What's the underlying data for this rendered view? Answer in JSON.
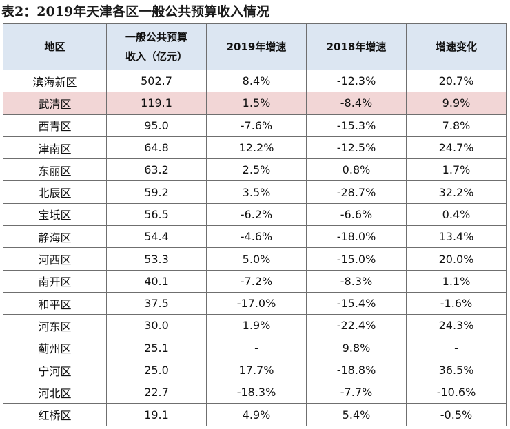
{
  "title": "表2：2019年天津各区一般公共预算收入情况",
  "headers": [
    "地区",
    "一般公共预算\n收入（亿元）",
    "2019年增速",
    "2018年增速",
    "增速变化"
  ],
  "highlight_color": "#f2d6d6",
  "header_color": "#dce6f2",
  "rows": [
    [
      "滨海新区",
      "502.7",
      "8.4%",
      "-12.3%",
      "20.7%"
    ],
    [
      "武清区",
      "119.1",
      "1.5%",
      "-8.4%",
      "9.9%"
    ],
    [
      "西青区",
      "95.0",
      "-7.6%",
      "-15.3%",
      "7.8%"
    ],
    [
      "津南区",
      "64.8",
      "12.2%",
      "-12.5%",
      "24.7%"
    ],
    [
      "东丽区",
      "63.2",
      "2.5%",
      "0.8%",
      "1.7%"
    ],
    [
      "北辰区",
      "59.2",
      "3.5%",
      "-28.7%",
      "32.2%"
    ],
    [
      "宝坻区",
      "56.5",
      "-6.2%",
      "-6.6%",
      "0.4%"
    ],
    [
      "静海区",
      "54.4",
      "-4.6%",
      "-18.0%",
      "13.4%"
    ],
    [
      "河西区",
      "53.3",
      "5.0%",
      "-15.0%",
      "20.0%"
    ],
    [
      "南开区",
      "40.1",
      "-7.2%",
      "-8.3%",
      "1.1%"
    ],
    [
      "和平区",
      "37.5",
      "-17.0%",
      "-15.4%",
      "-1.6%"
    ],
    [
      "河东区",
      "30.0",
      "1.9%",
      "-22.4%",
      "24.3%"
    ],
    [
      "蓟州区",
      "25.1",
      "-",
      "9.8%",
      "-"
    ],
    [
      "宁河区",
      "25.0",
      "17.7%",
      "-18.8%",
      "36.5%"
    ],
    [
      "河北区",
      "22.7",
      "-18.3%",
      "-7.7%",
      "-10.6%"
    ],
    [
      "红桥区",
      "19.1",
      "4.9%",
      "5.4%",
      "-0.5%"
    ]
  ],
  "highlighted_row_index": 1
}
